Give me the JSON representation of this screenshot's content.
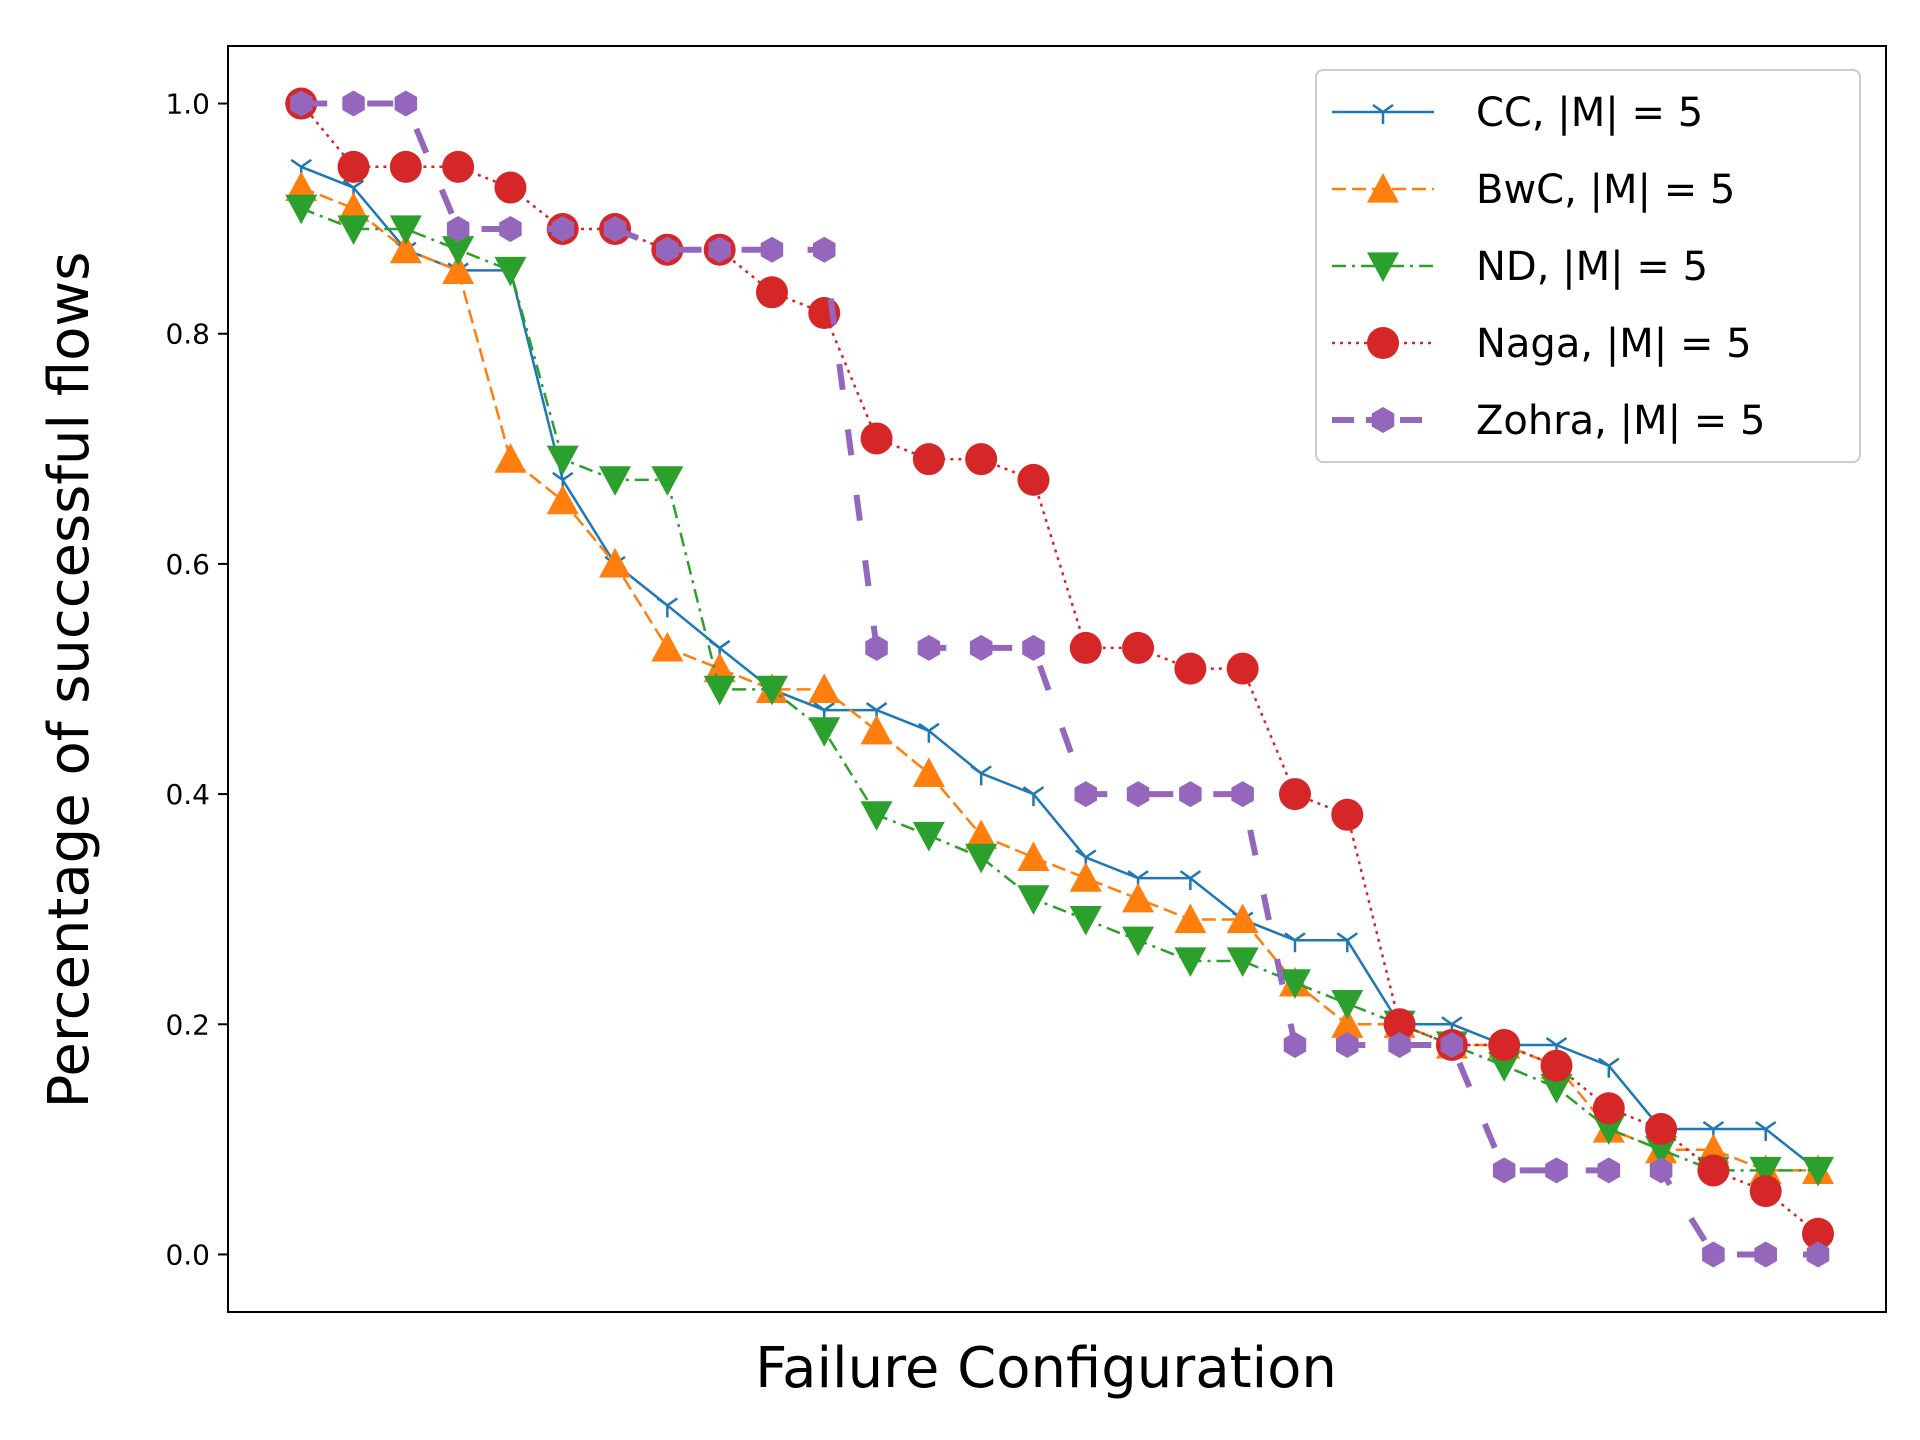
{
  "chart_data": {
    "type": "line",
    "title": "",
    "xlabel": "Failure Configuration",
    "ylabel": "Percentage of successful flows",
    "ylim": [
      -0.05,
      1.05
    ],
    "xlim": [
      -1.4,
      30.3
    ],
    "xticks_visible": false,
    "yticks": [
      "0.0",
      "0.2",
      "0.4",
      "0.6",
      "0.8",
      "1.0"
    ],
    "grid": false,
    "legend_position": "top-right",
    "x": [
      0,
      1,
      2,
      3,
      4,
      5,
      6,
      7,
      8,
      9,
      10,
      11,
      12,
      13,
      14,
      15,
      16,
      17,
      18,
      19,
      20,
      21,
      22,
      23,
      24,
      25,
      26,
      27,
      28,
      29
    ],
    "series": [
      {
        "name": "CC, |M| = 5",
        "color": "#1f77b4",
        "line": "solid",
        "marker": "tri_down",
        "values": [
          0.945,
          0.927,
          0.873,
          0.855,
          0.855,
          0.673,
          0.6,
          0.564,
          0.527,
          0.491,
          0.473,
          0.473,
          0.455,
          0.418,
          0.4,
          0.345,
          0.327,
          0.327,
          0.291,
          0.273,
          0.273,
          0.2,
          0.2,
          0.182,
          0.182,
          0.164,
          0.109,
          0.109,
          0.109,
          0.073
        ]
      },
      {
        "name": "BwC, |M| = 5",
        "color": "#ff7f0e",
        "line": "dashed",
        "marker": "triangle-up",
        "values": [
          0.927,
          0.909,
          0.873,
          0.855,
          0.691,
          0.655,
          0.6,
          0.527,
          0.509,
          0.491,
          0.491,
          0.455,
          0.418,
          0.364,
          0.345,
          0.327,
          0.309,
          0.291,
          0.291,
          0.236,
          0.2,
          0.2,
          0.182,
          0.182,
          0.164,
          0.109,
          0.091,
          0.091,
          0.073,
          0.073
        ]
      },
      {
        "name": "ND, |M| = 5",
        "color": "#2ca02c",
        "line": "dashdot",
        "marker": "triangle-down",
        "values": [
          0.909,
          0.891,
          0.891,
          0.873,
          0.855,
          0.691,
          0.673,
          0.673,
          0.491,
          0.491,
          0.455,
          0.382,
          0.364,
          0.345,
          0.309,
          0.291,
          0.273,
          0.255,
          0.255,
          0.236,
          0.218,
          0.2,
          0.182,
          0.164,
          0.145,
          0.109,
          0.091,
          0.073,
          0.073,
          0.073
        ]
      },
      {
        "name": "Naga, |M| = 5",
        "color": "#d62728",
        "line": "dotted",
        "marker": "circle",
        "values": [
          1.0,
          0.945,
          0.945,
          0.945,
          0.927,
          0.891,
          0.891,
          0.873,
          0.873,
          0.836,
          0.818,
          0.709,
          0.691,
          0.691,
          0.673,
          0.527,
          0.527,
          0.509,
          0.509,
          0.4,
          0.382,
          0.2,
          0.182,
          0.182,
          0.164,
          0.127,
          0.109,
          0.073,
          0.055,
          0.018
        ]
      },
      {
        "name": "Zohra, |M| = 5",
        "color": "#9467bd",
        "line": "loosely-dashed",
        "marker": "hexagon",
        "values": [
          1.0,
          1.0,
          1.0,
          0.891,
          0.891,
          0.891,
          0.891,
          0.873,
          0.873,
          0.873,
          0.873,
          0.527,
          0.527,
          0.527,
          0.527,
          0.4,
          0.4,
          0.4,
          0.4,
          0.182,
          0.182,
          0.182,
          0.182,
          0.073,
          0.073,
          0.073,
          0.073,
          0.0,
          0.0,
          0.0
        ]
      }
    ]
  }
}
